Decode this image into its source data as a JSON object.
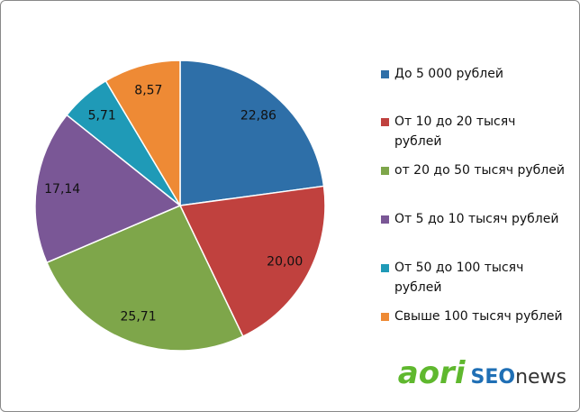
{
  "chart_data": {
    "type": "pie",
    "categories": [
      "До 5 000 рублей",
      "От 10 до 20 тысяч рублей",
      "от 20 до 50 тысяч рублей",
      "От 5 до 10 тысяч рублей",
      "От 50 до 100 тысяч рублей",
      "Свыше 100 тысяч рублей"
    ],
    "values": [
      22.86,
      20.0,
      25.71,
      17.14,
      5.71,
      8.57
    ],
    "value_labels": [
      "22,86",
      "20,00",
      "25,71",
      "17,14",
      "5,71",
      "8,57"
    ],
    "colors": [
      "#2e6fa8",
      "#c0413e",
      "#7ea64a",
      "#7a5796",
      "#1f9ab7",
      "#ee8a35"
    ],
    "legend": "right"
  },
  "brand": {
    "left": "aori",
    "seo": "SEO",
    "news": "news"
  }
}
